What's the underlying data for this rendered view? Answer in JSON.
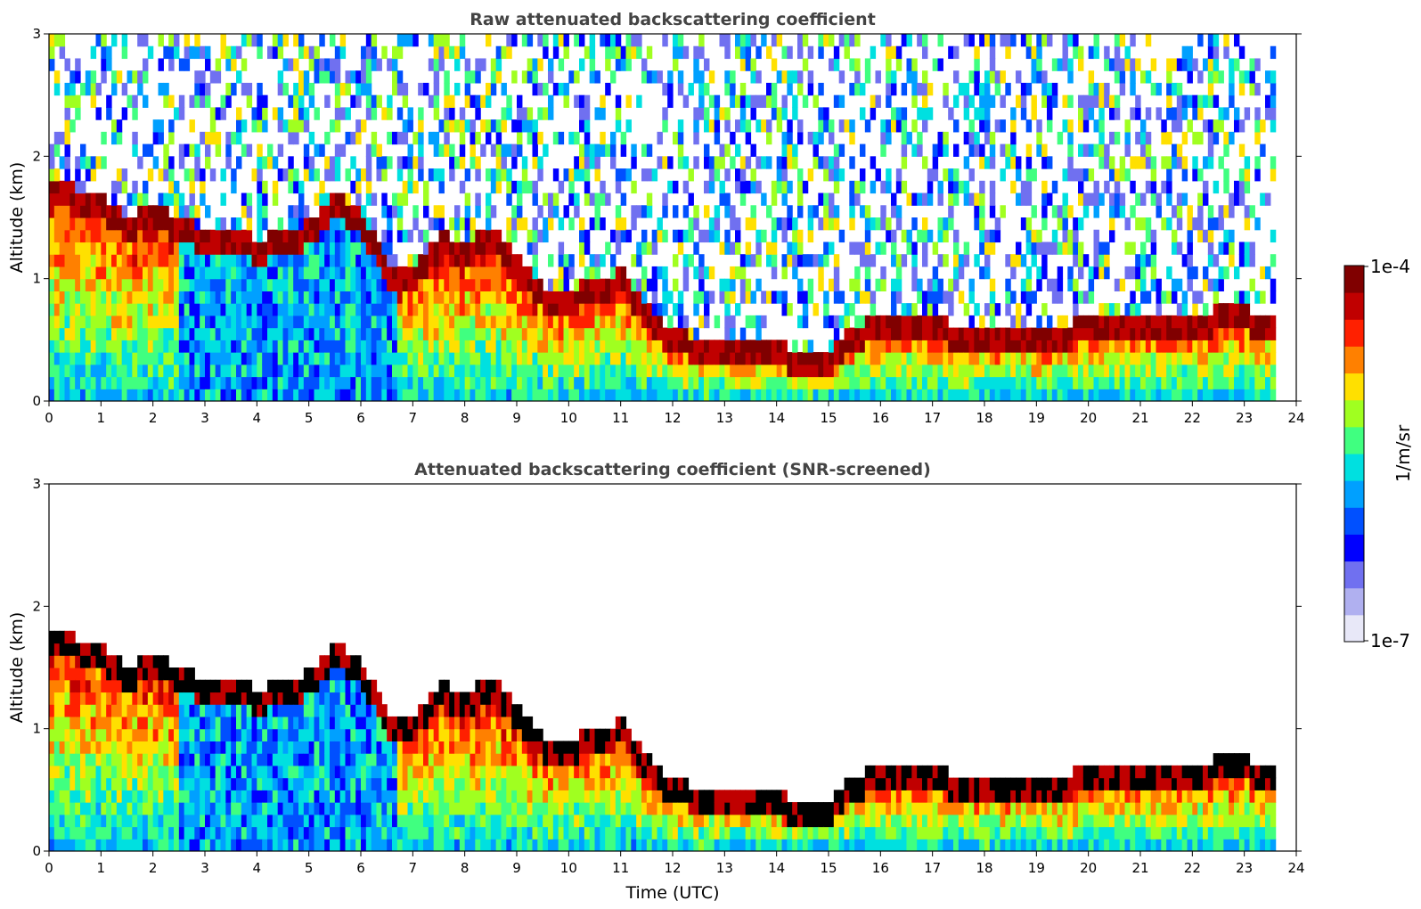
{
  "chart_data": [
    {
      "type": "heatmap",
      "title": "Raw attenuated backscattering coefficient",
      "xlabel": "",
      "ylabel": "Altitude (km)",
      "xlim": [
        0,
        24
      ],
      "ylim": [
        0,
        3
      ],
      "xticks": [
        0,
        1,
        2,
        3,
        4,
        5,
        6,
        7,
        8,
        9,
        10,
        11,
        12,
        13,
        14,
        15,
        16,
        17,
        18,
        19,
        20,
        21,
        22,
        23,
        24
      ],
      "yticks": [
        0,
        1,
        2,
        3
      ],
      "screened": false,
      "layer_top_km": [
        [
          0,
          1.75
        ],
        [
          1,
          1.6
        ],
        [
          1.5,
          1.45
        ],
        [
          2,
          1.5
        ],
        [
          2.5,
          1.45
        ],
        [
          3,
          1.3
        ],
        [
          3.5,
          1.35
        ],
        [
          4,
          1.25
        ],
        [
          4.5,
          1.3
        ],
        [
          5,
          1.4
        ],
        [
          5.5,
          1.6
        ],
        [
          6,
          1.5
        ],
        [
          6.5,
          1.05
        ],
        [
          7,
          1.0
        ],
        [
          7.5,
          1.3
        ],
        [
          8,
          1.2
        ],
        [
          8.5,
          1.35
        ],
        [
          9,
          1.1
        ],
        [
          9.5,
          0.85
        ],
        [
          10,
          0.85
        ],
        [
          10.5,
          0.9
        ],
        [
          11,
          1.0
        ],
        [
          11.5,
          0.7
        ],
        [
          12,
          0.5
        ],
        [
          12.5,
          0.45
        ],
        [
          13,
          0.45
        ],
        [
          13.5,
          0.4
        ],
        [
          14,
          0.38
        ],
        [
          14.5,
          0.35
        ],
        [
          15,
          0.35
        ],
        [
          15.5,
          0.55
        ],
        [
          16,
          0.6
        ],
        [
          16.5,
          0.62
        ],
        [
          17,
          0.58
        ],
        [
          18,
          0.55
        ],
        [
          19,
          0.55
        ],
        [
          20,
          0.58
        ],
        [
          21,
          0.6
        ],
        [
          22,
          0.65
        ],
        [
          23,
          0.7
        ],
        [
          23.5,
          0.6
        ]
      ]
    },
    {
      "type": "heatmap",
      "title": "Attenuated backscattering coefficient (SNR-screened)",
      "xlabel": "Time (UTC)",
      "ylabel": "Altitude (km)",
      "xlim": [
        0,
        24
      ],
      "ylim": [
        0,
        3
      ],
      "xticks": [
        0,
        1,
        2,
        3,
        4,
        5,
        6,
        7,
        8,
        9,
        10,
        11,
        12,
        13,
        14,
        15,
        16,
        17,
        18,
        19,
        20,
        21,
        22,
        23,
        24
      ],
      "yticks": [
        0,
        1,
        2,
        3
      ],
      "screened": true,
      "layer_top_km": [
        [
          0,
          1.75
        ],
        [
          1,
          1.6
        ],
        [
          1.5,
          1.45
        ],
        [
          2,
          1.5
        ],
        [
          2.5,
          1.45
        ],
        [
          3,
          1.3
        ],
        [
          3.5,
          1.35
        ],
        [
          4,
          1.25
        ],
        [
          4.5,
          1.3
        ],
        [
          5,
          1.4
        ],
        [
          5.5,
          1.6
        ],
        [
          6,
          1.5
        ],
        [
          6.5,
          1.05
        ],
        [
          7,
          1.0
        ],
        [
          7.5,
          1.3
        ],
        [
          8,
          1.2
        ],
        [
          8.5,
          1.35
        ],
        [
          9,
          1.1
        ],
        [
          9.5,
          0.85
        ],
        [
          10,
          0.85
        ],
        [
          10.5,
          0.9
        ],
        [
          11,
          1.0
        ],
        [
          11.5,
          0.7
        ],
        [
          12,
          0.5
        ],
        [
          12.5,
          0.45
        ],
        [
          13,
          0.45
        ],
        [
          13.5,
          0.4
        ],
        [
          14,
          0.38
        ],
        [
          14.5,
          0.35
        ],
        [
          15,
          0.35
        ],
        [
          15.5,
          0.55
        ],
        [
          16,
          0.6
        ],
        [
          16.5,
          0.62
        ],
        [
          17,
          0.58
        ],
        [
          18,
          0.55
        ],
        [
          19,
          0.55
        ],
        [
          20,
          0.58
        ],
        [
          21,
          0.6
        ],
        [
          22,
          0.65
        ],
        [
          23,
          0.7
        ],
        [
          23.5,
          0.6
        ]
      ]
    }
  ],
  "colorbar": {
    "label": "1/m/sr",
    "max_label": "1e-4",
    "min_label": "1e-7",
    "colormap": "jet",
    "colors": [
      "#e8e8f8",
      "#b0b0f0",
      "#7070f0",
      "#0000ff",
      "#0050ff",
      "#00a0ff",
      "#00e0e0",
      "#40ff80",
      "#a0ff20",
      "#ffe000",
      "#ff8000",
      "#ff2000",
      "#c00000",
      "#800000"
    ]
  }
}
